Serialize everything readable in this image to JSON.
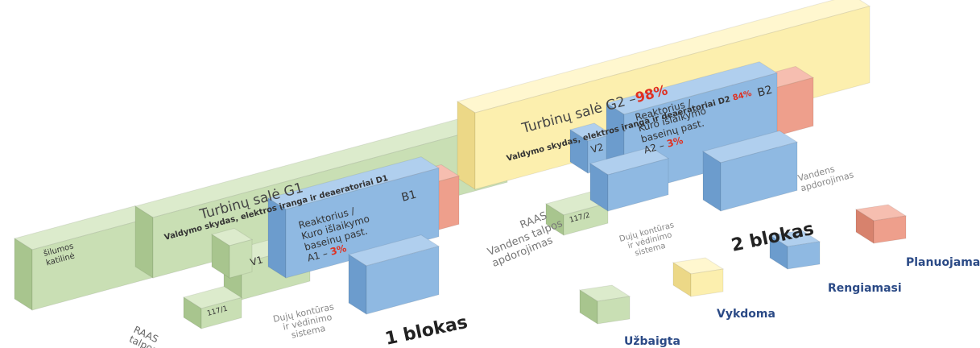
{
  "unit1": {
    "boiler": [
      "šilumos",
      "katilinė"
    ],
    "turbine_hall": "Turbinų salė G1",
    "control": "Valdymo skydas, elektros įranga ir deaeratoriai D1",
    "b_label": "B1",
    "reactor": [
      "Reaktorius /",
      "Kuro išlaikymo",
      "baseinų past.",
      "A1 –"
    ],
    "reactor_pct": "3%",
    "v_label": "V1",
    "raas_id": "117/1",
    "raas": [
      "RAAS",
      "talpos"
    ],
    "gas": [
      "Dujų kontūras",
      "ir vėdinimo",
      "sistema"
    ],
    "block": "1 blokas"
  },
  "unit2": {
    "turbine_hall": "Turbinų salė G2 –",
    "turbine_pct": "98%",
    "control": "Valdymo skydas, elektros įranga ir deaeratoriai D2",
    "control_pct": "84%",
    "b_label": "B2",
    "reactor": [
      "Reaktorius /",
      "Kuro išlaikymo",
      "baseinų past.",
      "A2 –"
    ],
    "reactor_pct": "3%",
    "v_label": "V2",
    "raas_id": "117/2",
    "raas": [
      "RAAS",
      "Vandens talpos",
      "apdorojimas"
    ],
    "gas": [
      "Dujų kontūras",
      "ir vėdinimo",
      "sistema"
    ],
    "water": [
      "Vandens",
      "apdorojimas"
    ],
    "block": "2 blokas"
  },
  "legend": [
    "Planuojama",
    "Rengiamasi",
    "Vykdoma",
    "Užbaigta"
  ]
}
